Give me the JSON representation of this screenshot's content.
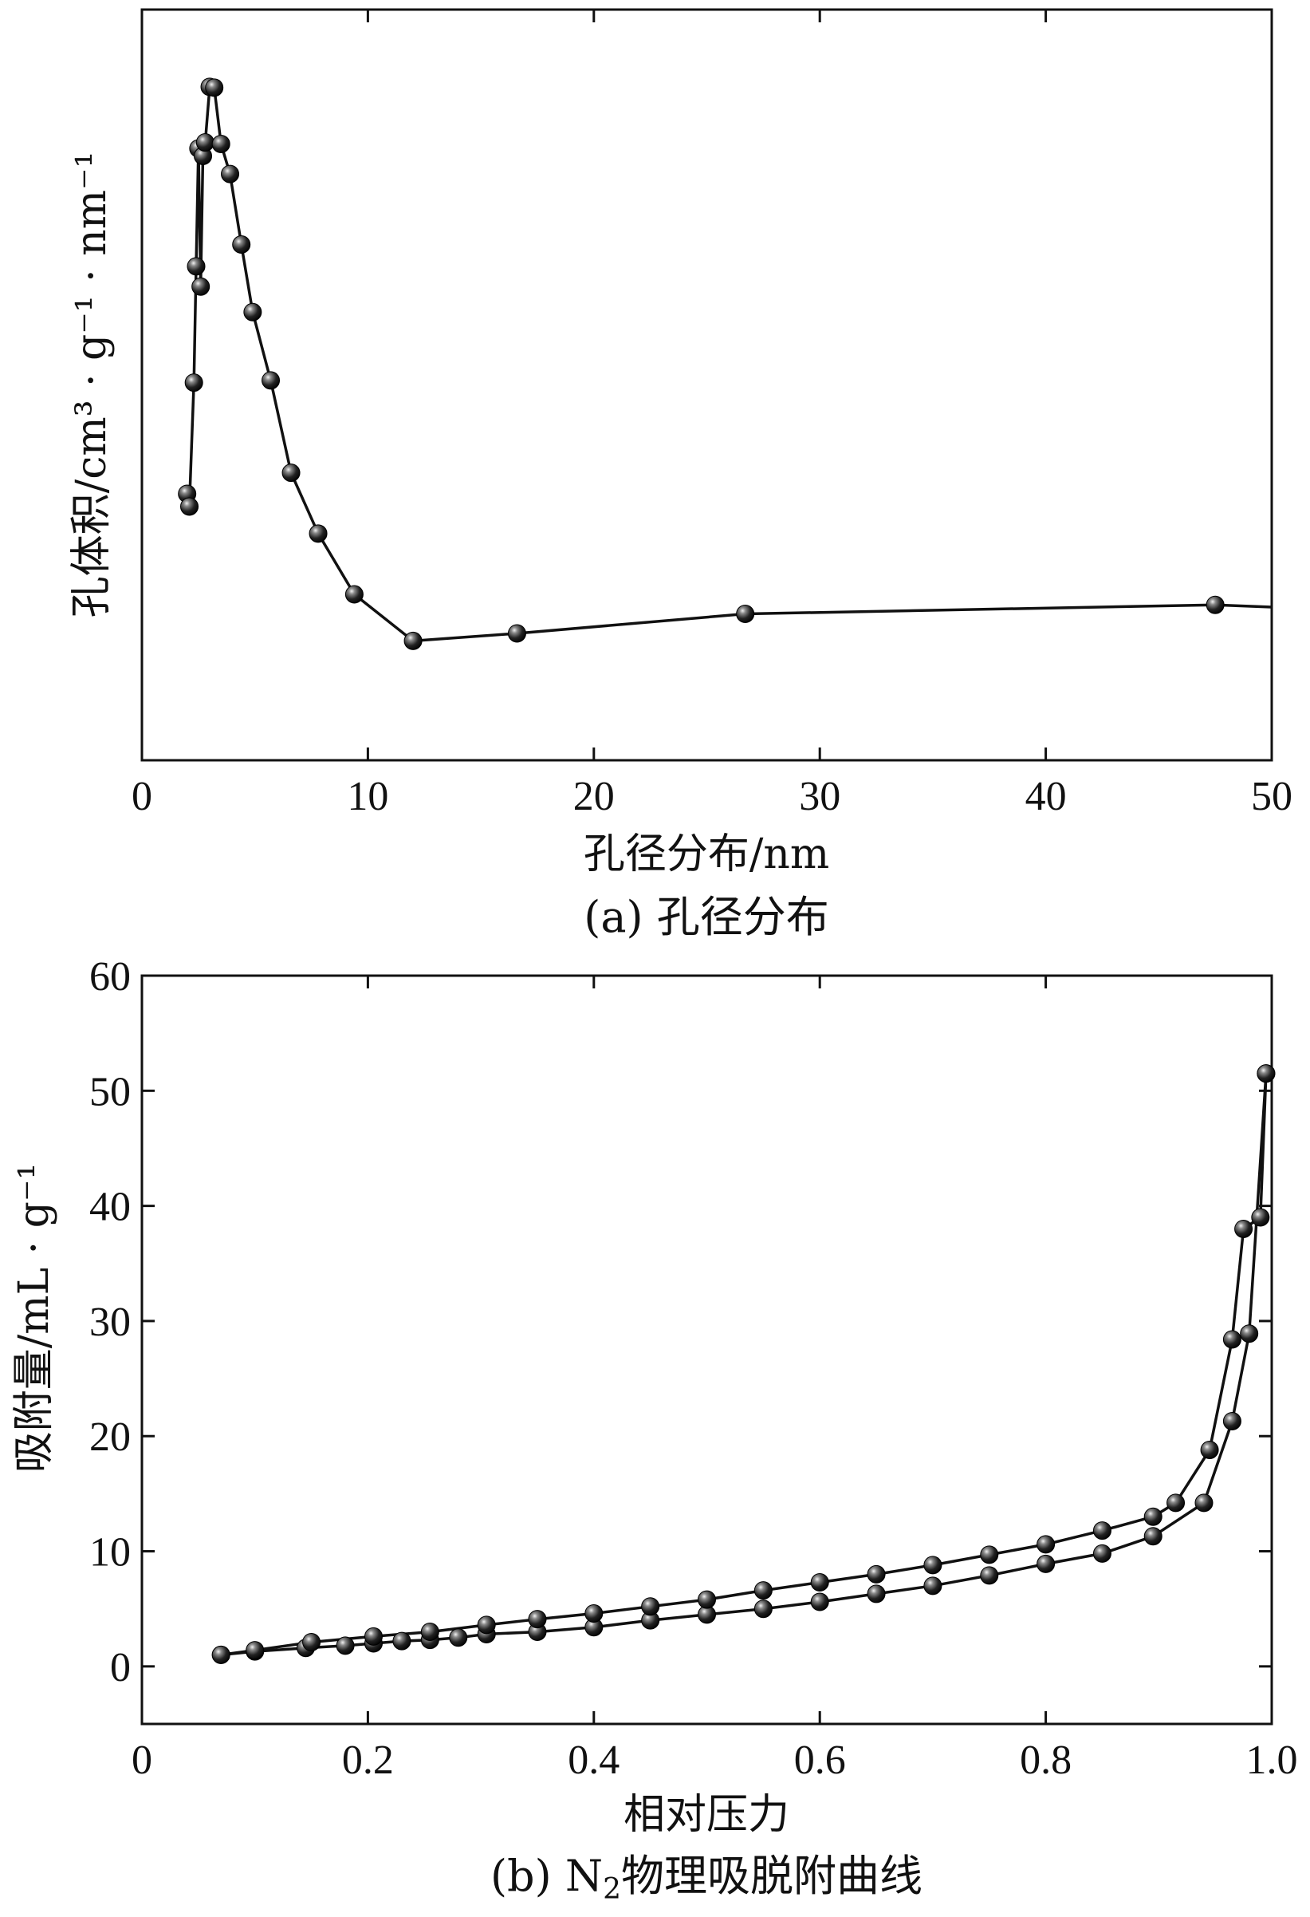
{
  "chart_data": [
    {
      "type": "line",
      "caption": "(a) 孔径分布",
      "xlabel": "孔径分布/nm",
      "ylabel": "孔体积/cm³ · g⁻¹ · nm⁻¹",
      "xlim": [
        0,
        50
      ],
      "ylim": [
        0,
        1
      ],
      "y_ticks_labeled": false,
      "xticks": [
        0,
        10,
        20,
        30,
        40,
        50
      ],
      "xtick_labels": [
        "0",
        "10",
        "20",
        "30",
        "40",
        "50"
      ],
      "grid": false,
      "series": [
        {
          "x": [
            2.0,
            2.1,
            2.3,
            2.4,
            2.5,
            2.6,
            2.7,
            2.8,
            3.0,
            3.2,
            3.5,
            3.9,
            4.4,
            4.9,
            5.7,
            6.6,
            7.8,
            9.4,
            12.0,
            16.6,
            26.7,
            47.5,
            50.0
          ],
          "y": [
            0.355,
            0.338,
            0.503,
            0.658,
            0.815,
            0.631,
            0.805,
            0.823,
            0.897,
            0.896,
            0.821,
            0.781,
            0.687,
            0.597,
            0.506,
            0.383,
            0.302,
            0.221,
            0.159,
            0.169,
            0.195,
            0.207,
            0.204
          ]
        }
      ]
    },
    {
      "type": "line",
      "caption_prefix": "(b) N",
      "caption_sub": "2",
      "caption_suffix": "物理吸脱附曲线",
      "xlabel": "相对压力",
      "ylabel": "吸附量/mL · g⁻¹",
      "xlim": [
        0,
        1.0
      ],
      "ylim": [
        -5,
        60
      ],
      "xticks": [
        0,
        0.2,
        0.4,
        0.6,
        0.8,
        1.0
      ],
      "xtick_labels": [
        "0",
        "0.2",
        "0.4",
        "0.6",
        "0.8",
        "1.0"
      ],
      "yticks": [
        0,
        10,
        20,
        30,
        40,
        50,
        60
      ],
      "ytick_labels": [
        "0",
        "10",
        "20",
        "30",
        "40",
        "50",
        "60"
      ],
      "grid": false,
      "series": [
        {
          "x": [
            0.07,
            0.1,
            0.145,
            0.18,
            0.205,
            0.23,
            0.255,
            0.28,
            0.305,
            0.35,
            0.4,
            0.45,
            0.5,
            0.55,
            0.6,
            0.65,
            0.7,
            0.75,
            0.8,
            0.85,
            0.895,
            0.94,
            0.965,
            0.98,
            0.995
          ],
          "y": [
            1.0,
            1.3,
            1.6,
            1.8,
            2.0,
            2.2,
            2.3,
            2.5,
            2.8,
            3.0,
            3.4,
            4.0,
            4.5,
            5.0,
            5.6,
            6.3,
            7.0,
            7.9,
            8.9,
            9.8,
            11.3,
            14.2,
            21.3,
            28.9,
            51.5
          ]
        },
        {
          "x": [
            0.995,
            0.99,
            0.975,
            0.965,
            0.945,
            0.915,
            0.895,
            0.85,
            0.8,
            0.75,
            0.7,
            0.65,
            0.6,
            0.55,
            0.5,
            0.45,
            0.4,
            0.35,
            0.305,
            0.255,
            0.205,
            0.15,
            0.1,
            0.07
          ],
          "y": [
            51.5,
            39.0,
            38.0,
            28.4,
            18.8,
            14.2,
            13.0,
            11.8,
            10.6,
            9.7,
            8.8,
            8.0,
            7.3,
            6.6,
            5.8,
            5.2,
            4.6,
            4.1,
            3.6,
            3.0,
            2.6,
            2.1,
            1.4,
            1.0
          ]
        }
      ]
    }
  ]
}
